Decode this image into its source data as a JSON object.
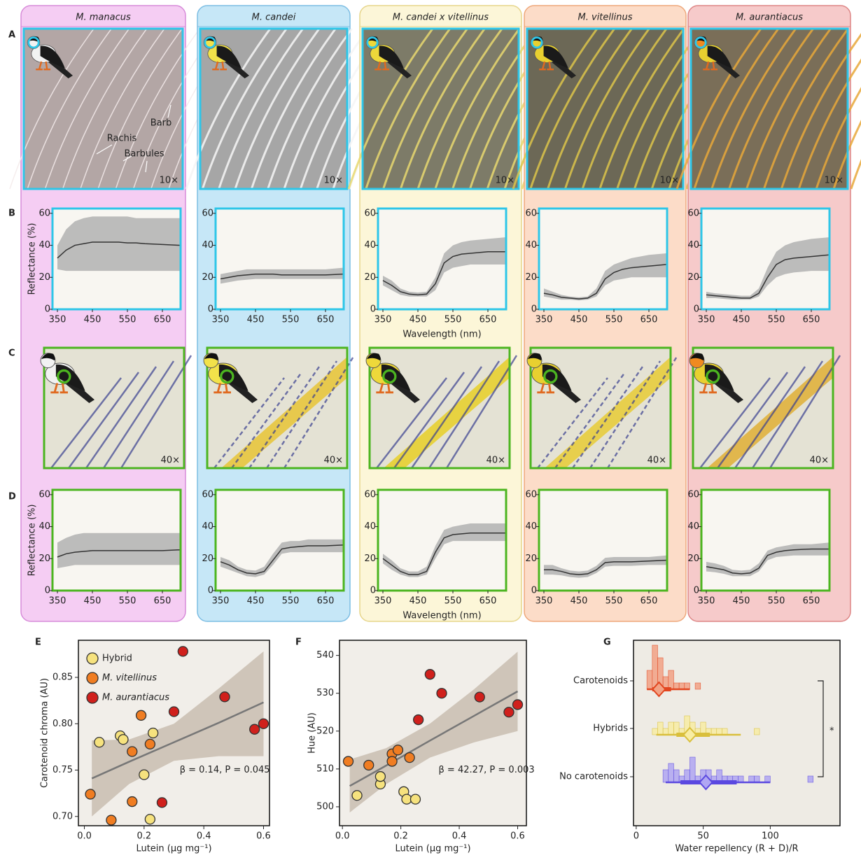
{
  "figure": {
    "panel_labels": [
      "A",
      "B",
      "C",
      "D",
      "E",
      "F",
      "G"
    ],
    "columns": [
      {
        "name": "M. manacus",
        "zoom_a": "10×",
        "zoom_c": "40×"
      },
      {
        "name": "M. candei",
        "zoom_a": "10×",
        "zoom_c": "40×"
      },
      {
        "name": "M. candei x vitellinus",
        "zoom_a": "10×",
        "zoom_c": "40×"
      },
      {
        "name": "M. vitellinus",
        "zoom_a": "10×",
        "zoom_c": "40×"
      },
      {
        "name": "M. aurantiacus",
        "zoom_a": "10×",
        "zoom_c": "40×"
      }
    ],
    "annotations": [
      "Rachis",
      "Barb",
      "Barbules"
    ]
  },
  "chart_data": [
    {
      "type": "line",
      "ylabel": "Reflectance (%)",
      "x": [
        350,
        375,
        400,
        425,
        450,
        475,
        500,
        525,
        550,
        575,
        600,
        650,
        700
      ],
      "values": [
        32,
        37,
        40,
        41,
        42,
        42,
        42,
        42,
        41.5,
        41.5,
        41,
        40.5,
        40
      ],
      "band_low": [
        25,
        24,
        24,
        24,
        24,
        24,
        24,
        24,
        24,
        24,
        24,
        24,
        24
      ],
      "band_high": [
        40,
        50,
        55,
        57,
        58,
        58,
        58,
        58,
        58,
        57,
        57,
        57,
        57
      ],
      "xlim": [
        336,
        702
      ],
      "ylim": [
        0,
        63
      ],
      "xticks": [
        350,
        450,
        550,
        650
      ],
      "yticks": [
        0,
        20,
        40,
        60
      ],
      "color": "#333333",
      "band_color": "#a8a8a8"
    },
    {
      "type": "line",
      "x": [
        350,
        375,
        400,
        425,
        450,
        475,
        500,
        525,
        550,
        575,
        600,
        650,
        700
      ],
      "values": [
        19,
        20,
        21,
        21.5,
        22,
        22,
        22,
        21.5,
        21.5,
        21.5,
        21.5,
        21.5,
        22
      ],
      "band_low": [
        16,
        17,
        18,
        18.5,
        19,
        19,
        19,
        19,
        19,
        19,
        19,
        19,
        19
      ],
      "band_high": [
        22,
        23,
        24,
        25,
        25,
        25,
        25,
        25,
        25,
        25,
        25,
        25,
        26
      ],
      "xlim": [
        336,
        702
      ],
      "ylim": [
        0,
        63
      ],
      "xticks": [
        350,
        450,
        550,
        650
      ],
      "yticks": [
        0,
        20,
        40,
        60
      ],
      "color": "#333333",
      "band_color": "#a8a8a8"
    },
    {
      "type": "line",
      "xlabel": "Wavelength (nm)",
      "x": [
        350,
        375,
        400,
        425,
        450,
        475,
        500,
        525,
        550,
        575,
        600,
        650,
        700
      ],
      "values": [
        18,
        15,
        11,
        9.5,
        9,
        9.5,
        16,
        29,
        33,
        34.5,
        35,
        36,
        36
      ],
      "band_low": [
        15,
        12,
        9,
        8,
        8,
        8,
        12,
        23,
        26,
        27,
        28,
        28,
        28
      ],
      "band_high": [
        21,
        18,
        13,
        11,
        10.5,
        11,
        20,
        35,
        40,
        42,
        43,
        44,
        45
      ],
      "xlim": [
        336,
        702
      ],
      "ylim": [
        0,
        63
      ],
      "xticks": [
        350,
        450,
        550,
        650
      ],
      "yticks": [
        0,
        20,
        40,
        60
      ],
      "color": "#333333",
      "band_color": "#a8a8a8"
    },
    {
      "type": "line",
      "x": [
        350,
        375,
        400,
        425,
        450,
        475,
        500,
        525,
        550,
        575,
        600,
        650,
        700
      ],
      "values": [
        10,
        9,
        7.5,
        7,
        6.5,
        7,
        10,
        19,
        23,
        25,
        26,
        27,
        28
      ],
      "band_low": [
        8,
        7,
        6,
        6,
        5.5,
        6,
        8,
        15,
        18,
        19,
        20,
        20,
        20
      ],
      "band_high": [
        13,
        11,
        9,
        8,
        7.5,
        8,
        13,
        24,
        28,
        30,
        32,
        34,
        35
      ],
      "xlim": [
        336,
        702
      ],
      "ylim": [
        0,
        63
      ],
      "xticks": [
        350,
        450,
        550,
        650
      ],
      "yticks": [
        0,
        20,
        40,
        60
      ],
      "color": "#333333",
      "band_color": "#a8a8a8"
    },
    {
      "type": "line",
      "x": [
        350,
        375,
        400,
        425,
        450,
        475,
        500,
        525,
        550,
        575,
        600,
        650,
        700
      ],
      "values": [
        9,
        8.5,
        8,
        7.5,
        7,
        7,
        10,
        20,
        28,
        31,
        32,
        33,
        34
      ],
      "band_low": [
        7,
        7,
        6.5,
        6,
        6,
        6,
        8,
        15,
        20,
        22,
        23,
        24,
        24
      ],
      "band_high": [
        11,
        10,
        9.5,
        9,
        8.5,
        8.5,
        13,
        26,
        36,
        40,
        42,
        44,
        45
      ],
      "xlim": [
        336,
        702
      ],
      "ylim": [
        0,
        63
      ],
      "xticks": [
        350,
        450,
        550,
        650
      ],
      "yticks": [
        0,
        20,
        40,
        60
      ],
      "color": "#333333",
      "band_color": "#a8a8a8"
    },
    {
      "type": "line",
      "ylabel": "Reflectance (%)",
      "x": [
        350,
        375,
        400,
        425,
        450,
        475,
        500,
        525,
        550,
        575,
        600,
        650,
        700
      ],
      "values": [
        21,
        23,
        24,
        24.5,
        25,
        25,
        25,
        25,
        25,
        25,
        25,
        25,
        25.5
      ],
      "band_low": [
        14,
        15,
        16,
        16,
        16,
        16,
        16,
        16,
        16,
        16,
        16,
        16,
        16
      ],
      "band_high": [
        30,
        33,
        35,
        36,
        36,
        36,
        36,
        36,
        36,
        36,
        36,
        36,
        36
      ],
      "xlim": [
        336,
        702
      ],
      "ylim": [
        0,
        63
      ],
      "xticks": [
        350,
        450,
        550,
        650
      ],
      "yticks": [
        0,
        20,
        40,
        60
      ],
      "color": "#333333",
      "band_color": "#a8a8a8"
    },
    {
      "type": "line",
      "x": [
        350,
        375,
        400,
        425,
        450,
        475,
        500,
        525,
        550,
        575,
        600,
        650,
        700
      ],
      "values": [
        18,
        16,
        13,
        11,
        10.5,
        12,
        19,
        26,
        27,
        27.5,
        28,
        28,
        28.5
      ],
      "band_low": [
        15,
        13,
        11,
        9,
        8.5,
        10,
        16,
        23,
        24,
        24,
        24,
        24,
        24
      ],
      "band_high": [
        21,
        19,
        15,
        13,
        12.5,
        15,
        23,
        30,
        31,
        31,
        32,
        32,
        32
      ],
      "xlim": [
        336,
        702
      ],
      "ylim": [
        0,
        63
      ],
      "xticks": [
        350,
        450,
        550,
        650
      ],
      "yticks": [
        0,
        20,
        40,
        60
      ],
      "color": "#333333",
      "band_color": "#a8a8a8"
    },
    {
      "type": "line",
      "xlabel": "Wavelength (nm)",
      "x": [
        350,
        375,
        400,
        425,
        450,
        475,
        500,
        525,
        550,
        575,
        600,
        650,
        700
      ],
      "values": [
        20,
        16,
        12,
        10,
        10,
        12,
        24,
        33,
        35,
        35.5,
        36,
        36,
        36
      ],
      "band_low": [
        17,
        13,
        10,
        8.5,
        8.5,
        10,
        20,
        29,
        31,
        31,
        31,
        31,
        31
      ],
      "band_high": [
        23,
        19,
        14,
        12,
        12,
        15,
        28,
        38,
        40,
        41,
        42,
        42,
        42
      ],
      "xlim": [
        336,
        702
      ],
      "ylim": [
        0,
        63
      ],
      "xticks": [
        350,
        450,
        550,
        650
      ],
      "yticks": [
        0,
        20,
        40,
        60
      ],
      "color": "#333333",
      "band_color": "#a8a8a8"
    },
    {
      "type": "line",
      "x": [
        350,
        375,
        400,
        425,
        450,
        475,
        500,
        525,
        550,
        575,
        600,
        650,
        700
      ],
      "values": [
        13,
        13,
        12,
        10.5,
        10,
        10.5,
        13,
        17.5,
        18,
        18,
        18,
        18.5,
        19
      ],
      "band_low": [
        10,
        10,
        9.5,
        8.5,
        8,
        8.5,
        11,
        15,
        15.5,
        15.5,
        15.5,
        16,
        16
      ],
      "band_high": [
        16,
        16,
        14,
        12.5,
        12,
        12.5,
        15.5,
        20.5,
        21,
        21,
        21,
        21,
        22
      ],
      "xlim": [
        336,
        702
      ],
      "ylim": [
        0,
        63
      ],
      "xticks": [
        350,
        450,
        550,
        650
      ],
      "yticks": [
        0,
        20,
        40,
        60
      ],
      "color": "#333333",
      "band_color": "#a8a8a8"
    },
    {
      "type": "line",
      "x": [
        350,
        375,
        400,
        425,
        450,
        475,
        500,
        525,
        550,
        575,
        600,
        650,
        700
      ],
      "values": [
        15,
        14,
        13,
        11,
        10.5,
        11,
        14,
        22,
        24,
        25,
        25.5,
        26,
        26
      ],
      "band_low": [
        12,
        11.5,
        10.5,
        9,
        9,
        9,
        12,
        19,
        21,
        21.5,
        22,
        22,
        22
      ],
      "band_high": [
        18,
        17,
        15.5,
        13,
        12.5,
        13,
        17,
        25,
        27,
        28,
        29,
        29,
        30
      ],
      "xlim": [
        336,
        702
      ],
      "ylim": [
        0,
        63
      ],
      "xticks": [
        350,
        450,
        550,
        650
      ],
      "yticks": [
        0,
        20,
        40,
        60
      ],
      "color": "#333333",
      "band_color": "#a8a8a8"
    },
    {
      "type": "scatter",
      "xlabel": "Lutein (μg mg⁻¹)",
      "ylabel": "Carotenoid chroma (AU)",
      "legend": "upper left",
      "annotation": "β = 0.14, P = 0.045",
      "xlim": [
        -0.02,
        0.62
      ],
      "ylim": [
        0.69,
        0.89
      ],
      "xticks": [
        {
          "value": 0,
          "label": "0.0"
        },
        0.2,
        0.4,
        0.6
      ],
      "yticks": [
        {
          "value": 0.7,
          "label": "0.70"
        },
        0.75,
        {
          "value": 0.8,
          "label": "0.80"
        },
        0.85
      ],
      "series": [
        {
          "name": "Hybrid",
          "color": "#f6e27e",
          "x": [
            0.05,
            0.12,
            0.13,
            0.23,
            0.2,
            0.22
          ],
          "values": [
            0.78,
            0.787,
            0.783,
            0.79,
            0.745,
            0.697
          ]
        },
        {
          "name": "M. vitellinus",
          "color": "#f07d22",
          "x": [
            0.02,
            0.09,
            0.16,
            0.19,
            0.16,
            0.22
          ],
          "values": [
            0.724,
            0.696,
            0.77,
            0.809,
            0.716,
            0.778
          ]
        },
        {
          "name": "M. aurantiacus",
          "color": "#d0201c",
          "x": [
            0.33,
            0.47,
            0.3,
            0.57,
            0.6,
            0.26
          ],
          "values": [
            0.878,
            0.829,
            0.813,
            0.794,
            0.8,
            0.715
          ]
        }
      ],
      "fit": {
        "color": "#777777",
        "band_color": "#c9bdb0",
        "x": [
          0.025,
          0.15,
          0.3,
          0.45,
          0.6
        ],
        "values": [
          0.741,
          0.759,
          0.78,
          0.801,
          0.823
        ],
        "band_low": [
          0.7,
          0.735,
          0.76,
          0.765,
          0.765
        ],
        "band_high": [
          0.782,
          0.783,
          0.8,
          0.838,
          0.878
        ]
      }
    },
    {
      "type": "scatter",
      "xlabel": "Lutein (μg mg⁻¹)",
      "ylabel": "Hue (AU)",
      "annotation": "β = 42.27, P = 0.003",
      "xlim": [
        -0.01,
        0.63
      ],
      "ylim": [
        495,
        544
      ],
      "xticks": [
        {
          "value": 0,
          "label": "0.0"
        },
        0.2,
        0.4,
        0.6
      ],
      "yticks": [
        500,
        510,
        520,
        530,
        540
      ],
      "series": [
        {
          "color": "#f6e27e",
          "x": [
            0.05,
            0.13,
            0.13,
            0.21,
            0.22,
            0.25
          ],
          "values": [
            503,
            506,
            508,
            504,
            502,
            502
          ]
        },
        {
          "color": "#f07d22",
          "x": [
            0.02,
            0.09,
            0.17,
            0.17,
            0.19,
            0.23
          ],
          "values": [
            512,
            511,
            514,
            512,
            515,
            513
          ]
        },
        {
          "color": "#d0201c",
          "x": [
            0.3,
            0.34,
            0.26,
            0.47,
            0.57,
            0.6
          ],
          "values": [
            535,
            530,
            523,
            529,
            525,
            527
          ]
        }
      ],
      "fit": {
        "color": "#777777",
        "band_color": "#c9bdb0",
        "x": [
          0.025,
          0.15,
          0.3,
          0.45,
          0.6
        ],
        "values": [
          505.5,
          510.9,
          517.5,
          524,
          530.5
        ],
        "band_low": [
          498.5,
          506,
          513,
          517,
          520
        ],
        "band_high": [
          512.5,
          515.5,
          522,
          531,
          541
        ]
      }
    },
    {
      "type": "histogram",
      "xlabel": "Water repellency (R + D)/R",
      "annotation": "*",
      "xlim": [
        -2,
        152
      ],
      "xticks": [
        0,
        50,
        100
      ],
      "categories": [
        "Carotenoids",
        "Hybrids",
        "No carotenoids"
      ],
      "groups": [
        {
          "color": "#e2451f",
          "fill": "#f2a285",
          "bins": [
            8,
            12,
            16,
            20,
            24,
            28,
            32,
            36,
            40,
            44,
            48
          ],
          "counts": [
            3,
            7,
            5,
            2,
            3,
            1,
            1,
            1,
            0,
            1
          ],
          "mean": 17,
          "inner": [
            12,
            26
          ],
          "outer": [
            8,
            40
          ]
        },
        {
          "color": "#d9bf3c",
          "fill": "#f8eda4",
          "bins": [
            12,
            16,
            20,
            24,
            28,
            32,
            36,
            40,
            44,
            48,
            52,
            56,
            60,
            64,
            68,
            72,
            76,
            80,
            84,
            88,
            92
          ],
          "counts": [
            1,
            2,
            1,
            2,
            2,
            1,
            3,
            2,
            1,
            2,
            1,
            1,
            1,
            1,
            0,
            0,
            0,
            0,
            0,
            1
          ],
          "mean": 40,
          "inner": [
            30,
            55
          ],
          "outer": [
            15,
            78
          ]
        },
        {
          "color": "#5a48e0",
          "fill": "#b0a6f3",
          "bins": [
            20,
            24,
            28,
            32,
            36,
            40,
            44,
            48,
            52,
            56,
            60,
            64,
            68,
            72,
            76,
            80,
            84,
            88,
            92,
            96,
            100,
            104,
            108,
            112,
            116,
            120,
            124,
            128,
            132
          ],
          "counts": [
            2,
            3,
            2,
            1,
            2,
            4,
            1,
            2,
            2,
            1,
            2,
            1,
            1,
            1,
            1,
            0,
            1,
            1,
            0,
            1,
            0,
            0,
            0,
            0,
            0,
            0,
            0,
            1
          ],
          "mean": 52,
          "inner": [
            33,
            75
          ],
          "outer": [
            22,
            100
          ]
        }
      ]
    }
  ]
}
